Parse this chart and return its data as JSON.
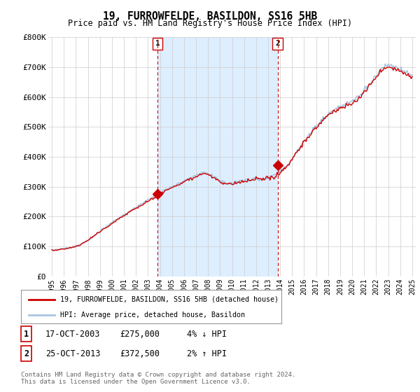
{
  "title": "19, FURROWFELDE, BASILDON, SS16 5HB",
  "subtitle": "Price paid vs. HM Land Registry's House Price Index (HPI)",
  "y_min": 0,
  "y_max": 800000,
  "y_ticks": [
    0,
    100000,
    200000,
    300000,
    400000,
    500000,
    600000,
    700000,
    800000
  ],
  "y_tick_labels": [
    "£0",
    "£100K",
    "£200K",
    "£300K",
    "£400K",
    "£500K",
    "£600K",
    "£700K",
    "£800K"
  ],
  "hpi_color": "#aac4e0",
  "price_color": "#cc0000",
  "dashed_color": "#cc0000",
  "shade_color": "#ddeeff",
  "marker1_year": 2003.8,
  "marker1_value": 275000,
  "marker2_year": 2013.8,
  "marker2_value": 372500,
  "legend_entry1": "19, FURROWFELDE, BASILDON, SS16 5HB (detached house)",
  "legend_entry2": "HPI: Average price, detached house, Basildon",
  "sale1_date": "17-OCT-2003",
  "sale1_price": "£275,000",
  "sale1_note": "4% ↓ HPI",
  "sale2_date": "25-OCT-2013",
  "sale2_price": "£372,500",
  "sale2_note": "2% ↑ HPI",
  "footer": "Contains HM Land Registry data © Crown copyright and database right 2024.\nThis data is licensed under the Open Government Licence v3.0.",
  "bg_color": "#ffffff",
  "plot_bg_color": "#ffffff",
  "grid_color": "#cccccc"
}
